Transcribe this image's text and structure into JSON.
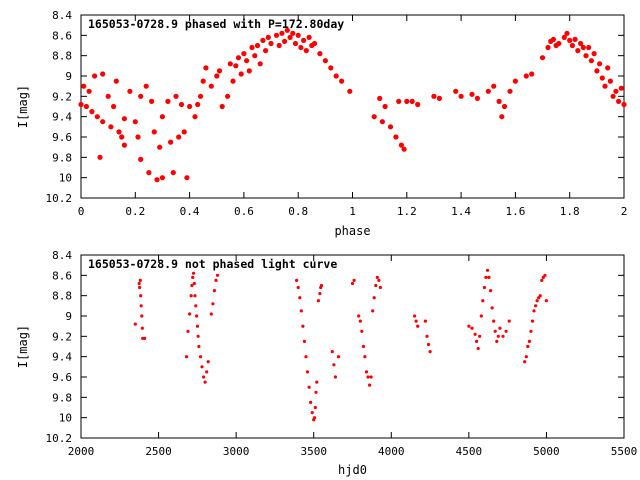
{
  "chart_data": [
    {
      "type": "scatter",
      "title": "165053-0728.9 phased with P=172.80day",
      "xlabel": "phase",
      "ylabel": "I[mag]",
      "xlim": [
        0,
        2
      ],
      "ylim": [
        8.4,
        10.2
      ],
      "y_inverted": true,
      "x_ticks": [
        "0",
        "0.2",
        "0.4",
        "0.6",
        "0.8",
        "1",
        "1.2",
        "1.4",
        "1.6",
        "1.8",
        "2"
      ],
      "y_ticks": [
        "8.4",
        "8.6",
        "8.8",
        "9",
        "9.2",
        "9.4",
        "9.6",
        "9.8",
        "10",
        "10.2"
      ],
      "grid": false,
      "marker_color": "#ff0000",
      "series": [
        {
          "points": [
            [
              0.0,
              9.28
            ],
            [
              0.01,
              9.1
            ],
            [
              0.02,
              9.3
            ],
            [
              0.03,
              9.15
            ],
            [
              0.04,
              9.35
            ],
            [
              0.05,
              9.0
            ],
            [
              0.06,
              9.4
            ],
            [
              0.07,
              9.8
            ],
            [
              0.08,
              8.98
            ],
            [
              0.08,
              9.45
            ],
            [
              0.1,
              9.2
            ],
            [
              0.11,
              9.5
            ],
            [
              0.12,
              9.3
            ],
            [
              0.13,
              9.05
            ],
            [
              0.14,
              9.55
            ],
            [
              0.15,
              9.6
            ],
            [
              0.16,
              9.68
            ],
            [
              0.16,
              9.42
            ],
            [
              0.18,
              9.15
            ],
            [
              0.2,
              9.45
            ],
            [
              0.21,
              9.6
            ],
            [
              0.22,
              9.2
            ],
            [
              0.22,
              9.82
            ],
            [
              0.24,
              9.1
            ],
            [
              0.25,
              9.95
            ],
            [
              0.26,
              9.25
            ],
            [
              0.27,
              9.55
            ],
            [
              0.28,
              10.02
            ],
            [
              0.29,
              9.7
            ],
            [
              0.3,
              10.0
            ],
            [
              0.3,
              9.4
            ],
            [
              0.32,
              9.25
            ],
            [
              0.33,
              9.65
            ],
            [
              0.34,
              9.95
            ],
            [
              0.35,
              9.2
            ],
            [
              0.36,
              9.6
            ],
            [
              0.37,
              9.28
            ],
            [
              0.38,
              9.55
            ],
            [
              0.39,
              10.0
            ],
            [
              0.4,
              9.3
            ],
            [
              0.42,
              9.4
            ],
            [
              0.43,
              9.28
            ],
            [
              0.44,
              9.2
            ],
            [
              0.45,
              9.05
            ],
            [
              0.46,
              8.92
            ],
            [
              0.48,
              9.1
            ],
            [
              0.5,
              9.0
            ],
            [
              0.51,
              8.95
            ],
            [
              0.52,
              9.3
            ],
            [
              0.54,
              9.2
            ],
            [
              0.55,
              8.88
            ],
            [
              0.56,
              9.05
            ],
            [
              0.57,
              8.9
            ],
            [
              0.58,
              8.82
            ],
            [
              0.59,
              8.98
            ],
            [
              0.6,
              8.78
            ],
            [
              0.61,
              8.85
            ],
            [
              0.62,
              8.95
            ],
            [
              0.63,
              8.72
            ],
            [
              0.64,
              8.8
            ],
            [
              0.65,
              8.7
            ],
            [
              0.66,
              8.88
            ],
            [
              0.67,
              8.65
            ],
            [
              0.68,
              8.75
            ],
            [
              0.69,
              8.62
            ],
            [
              0.7,
              8.68
            ],
            [
              0.72,
              8.6
            ],
            [
              0.73,
              8.7
            ],
            [
              0.74,
              8.58
            ],
            [
              0.75,
              8.66
            ],
            [
              0.76,
              8.55
            ],
            [
              0.77,
              8.62
            ],
            [
              0.78,
              8.58
            ],
            [
              0.79,
              8.68
            ],
            [
              0.8,
              8.6
            ],
            [
              0.81,
              8.72
            ],
            [
              0.82,
              8.65
            ],
            [
              0.83,
              8.75
            ],
            [
              0.84,
              8.62
            ],
            [
              0.85,
              8.7
            ],
            [
              0.86,
              8.68
            ],
            [
              0.88,
              8.78
            ],
            [
              0.9,
              8.85
            ],
            [
              0.92,
              8.92
            ],
            [
              0.94,
              9.0
            ],
            [
              0.96,
              9.05
            ],
            [
              0.99,
              9.15
            ],
            [
              1.08,
              9.4
            ],
            [
              1.1,
              9.22
            ],
            [
              1.11,
              9.45
            ],
            [
              1.12,
              9.3
            ],
            [
              1.14,
              9.5
            ],
            [
              1.16,
              9.6
            ],
            [
              1.17,
              9.25
            ],
            [
              1.18,
              9.68
            ],
            [
              1.19,
              9.72
            ],
            [
              1.2,
              9.25
            ],
            [
              1.22,
              9.25
            ],
            [
              1.24,
              9.28
            ],
            [
              1.3,
              9.2
            ],
            [
              1.32,
              9.22
            ],
            [
              1.38,
              9.15
            ],
            [
              1.4,
              9.2
            ],
            [
              1.44,
              9.18
            ],
            [
              1.46,
              9.22
            ],
            [
              1.5,
              9.15
            ],
            [
              1.52,
              9.1
            ],
            [
              1.54,
              9.25
            ],
            [
              1.55,
              9.4
            ],
            [
              1.56,
              9.3
            ],
            [
              1.58,
              9.15
            ],
            [
              1.6,
              9.05
            ],
            [
              1.64,
              9.0
            ],
            [
              1.66,
              8.98
            ],
            [
              1.7,
              8.82
            ],
            [
              1.72,
              8.72
            ],
            [
              1.73,
              8.66
            ],
            [
              1.74,
              8.64
            ],
            [
              1.75,
              8.7
            ],
            [
              1.76,
              8.68
            ],
            [
              1.78,
              8.62
            ],
            [
              1.79,
              8.58
            ],
            [
              1.8,
              8.65
            ],
            [
              1.81,
              8.7
            ],
            [
              1.82,
              8.64
            ],
            [
              1.83,
              8.75
            ],
            [
              1.84,
              8.68
            ],
            [
              1.85,
              8.72
            ],
            [
              1.86,
              8.8
            ],
            [
              1.87,
              8.72
            ],
            [
              1.88,
              8.85
            ],
            [
              1.89,
              8.78
            ],
            [
              1.9,
              8.95
            ],
            [
              1.91,
              8.88
            ],
            [
              1.92,
              9.02
            ],
            [
              1.93,
              9.1
            ],
            [
              1.94,
              8.92
            ],
            [
              1.95,
              9.05
            ],
            [
              1.96,
              9.2
            ],
            [
              1.97,
              9.15
            ],
            [
              1.98,
              9.25
            ],
            [
              1.99,
              9.12
            ],
            [
              2.0,
              9.28
            ]
          ]
        }
      ]
    },
    {
      "type": "scatter",
      "title": "165053-0728.9 not phased light curve",
      "xlabel": "hjd0",
      "ylabel": "I[mag]",
      "xlim": [
        2000,
        5500
      ],
      "ylim": [
        8.4,
        10.2
      ],
      "y_inverted": true,
      "x_ticks": [
        "2000",
        "2500",
        "3000",
        "3500",
        "4000",
        "4500",
        "5000",
        "5500"
      ],
      "y_ticks": [
        "8.4",
        "8.6",
        "8.8",
        "9",
        "9.2",
        "9.4",
        "9.6",
        "9.8",
        "10",
        "10.2"
      ],
      "grid": false,
      "marker_color": "#ff0000",
      "series": [
        {
          "points": [
            [
              2350,
              9.08
            ],
            [
              2375,
              8.68
            ],
            [
              2378,
              8.72
            ],
            [
              2382,
              8.65
            ],
            [
              2385,
              8.8
            ],
            [
              2388,
              8.9
            ],
            [
              2392,
              9.0
            ],
            [
              2395,
              9.12
            ],
            [
              2398,
              9.22
            ],
            [
              2410,
              9.22
            ],
            [
              2680,
              9.4
            ],
            [
              2690,
              9.15
            ],
            [
              2700,
              8.98
            ],
            [
              2710,
              8.8
            ],
            [
              2715,
              8.7
            ],
            [
              2720,
              8.62
            ],
            [
              2725,
              8.58
            ],
            [
              2730,
              8.68
            ],
            [
              2735,
              8.8
            ],
            [
              2740,
              8.9
            ],
            [
              2745,
              9.0
            ],
            [
              2750,
              9.1
            ],
            [
              2755,
              9.2
            ],
            [
              2760,
              9.3
            ],
            [
              2770,
              9.4
            ],
            [
              2780,
              9.5
            ],
            [
              2790,
              9.6
            ],
            [
              2800,
              9.65
            ],
            [
              2810,
              9.55
            ],
            [
              2820,
              9.45
            ],
            [
              2840,
              8.98
            ],
            [
              2850,
              8.88
            ],
            [
              2860,
              8.75
            ],
            [
              2870,
              8.65
            ],
            [
              2880,
              8.6
            ],
            [
              3390,
              8.65
            ],
            [
              3400,
              8.72
            ],
            [
              3410,
              8.82
            ],
            [
              3420,
              8.95
            ],
            [
              3430,
              9.1
            ],
            [
              3440,
              9.25
            ],
            [
              3450,
              9.4
            ],
            [
              3460,
              9.55
            ],
            [
              3470,
              9.7
            ],
            [
              3480,
              9.85
            ],
            [
              3490,
              9.95
            ],
            [
              3500,
              10.02
            ],
            [
              3505,
              10.0
            ],
            [
              3510,
              9.9
            ],
            [
              3515,
              9.75
            ],
            [
              3520,
              9.65
            ],
            [
              3530,
              8.85
            ],
            [
              3540,
              8.78
            ],
            [
              3545,
              8.72
            ],
            [
              3550,
              8.7
            ],
            [
              3620,
              9.35
            ],
            [
              3630,
              9.48
            ],
            [
              3640,
              9.6
            ],
            [
              3660,
              9.4
            ],
            [
              3750,
              8.68
            ],
            [
              3760,
              8.65
            ],
            [
              3790,
              9.0
            ],
            [
              3800,
              9.05
            ],
            [
              3810,
              9.15
            ],
            [
              3820,
              9.3
            ],
            [
              3830,
              9.4
            ],
            [
              3840,
              9.55
            ],
            [
              3850,
              9.6
            ],
            [
              3860,
              9.68
            ],
            [
              3870,
              9.6
            ],
            [
              3880,
              8.95
            ],
            [
              3890,
              8.82
            ],
            [
              3900,
              8.7
            ],
            [
              3910,
              8.62
            ],
            [
              3920,
              8.65
            ],
            [
              3930,
              8.72
            ],
            [
              4150,
              9.0
            ],
            [
              4160,
              9.05
            ],
            [
              4170,
              9.1
            ],
            [
              4220,
              9.05
            ],
            [
              4230,
              9.2
            ],
            [
              4240,
              9.28
            ],
            [
              4250,
              9.35
            ],
            [
              4500,
              9.1
            ],
            [
              4520,
              9.12
            ],
            [
              4540,
              9.18
            ],
            [
              4550,
              9.25
            ],
            [
              4560,
              9.32
            ],
            [
              4570,
              9.2
            ],
            [
              4580,
              9.0
            ],
            [
              4590,
              8.85
            ],
            [
              4600,
              8.72
            ],
            [
              4610,
              8.62
            ],
            [
              4620,
              8.55
            ],
            [
              4630,
              8.62
            ],
            [
              4640,
              8.75
            ],
            [
              4650,
              8.92
            ],
            [
              4660,
              9.05
            ],
            [
              4670,
              9.15
            ],
            [
              4680,
              9.25
            ],
            [
              4690,
              9.2
            ],
            [
              4700,
              9.12
            ],
            [
              4720,
              9.2
            ],
            [
              4740,
              9.15
            ],
            [
              4760,
              9.05
            ],
            [
              4860,
              9.45
            ],
            [
              4870,
              9.4
            ],
            [
              4880,
              9.3
            ],
            [
              4890,
              9.25
            ],
            [
              4900,
              9.15
            ],
            [
              4910,
              9.05
            ],
            [
              4920,
              8.95
            ],
            [
              4930,
              8.9
            ],
            [
              4940,
              8.85
            ],
            [
              4950,
              8.82
            ],
            [
              4960,
              8.8
            ],
            [
              4970,
              8.65
            ],
            [
              4980,
              8.62
            ],
            [
              4990,
              8.6
            ],
            [
              5000,
              8.85
            ]
          ]
        }
      ]
    }
  ]
}
